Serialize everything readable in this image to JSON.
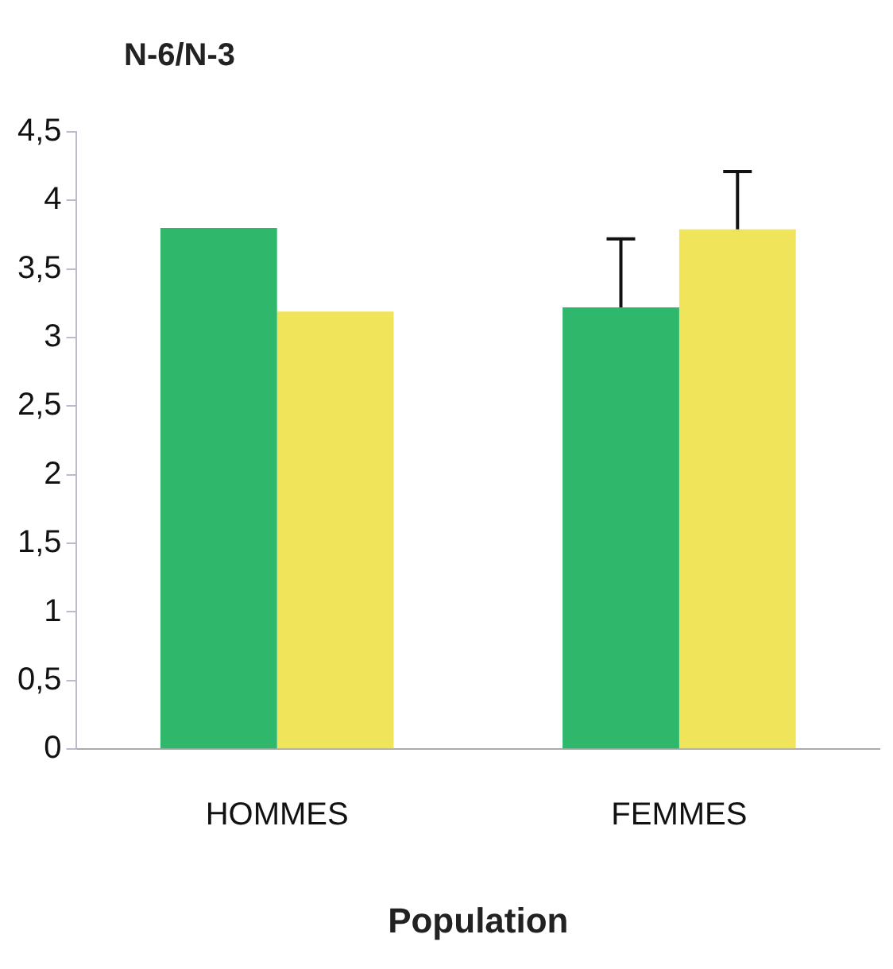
{
  "chart_data": {
    "type": "bar",
    "ylabel": "N-6/N-3",
    "xlabel": "Population",
    "categories": [
      "HOMMES",
      "FEMMES"
    ],
    "series": [
      {
        "color": "#2fb86c",
        "values": [
          3.8,
          3.22
        ],
        "errors": [
          null,
          0.5
        ]
      },
      {
        "color": "#f0e45a",
        "values": [
          3.19,
          3.79
        ],
        "errors": [
          null,
          0.42
        ]
      }
    ],
    "ylim": [
      0,
      4.5
    ],
    "yticks": [
      0,
      {
        "value": 0.5,
        "label": "0,5"
      },
      1,
      {
        "value": 1.5,
        "label": "1,5"
      },
      2,
      {
        "value": 2.5,
        "label": "2,5"
      },
      3,
      {
        "value": 3.5,
        "label": "3,5"
      },
      4,
      {
        "value": 4.5,
        "label": "4,5"
      }
    ],
    "grid": false,
    "legend": false
  }
}
